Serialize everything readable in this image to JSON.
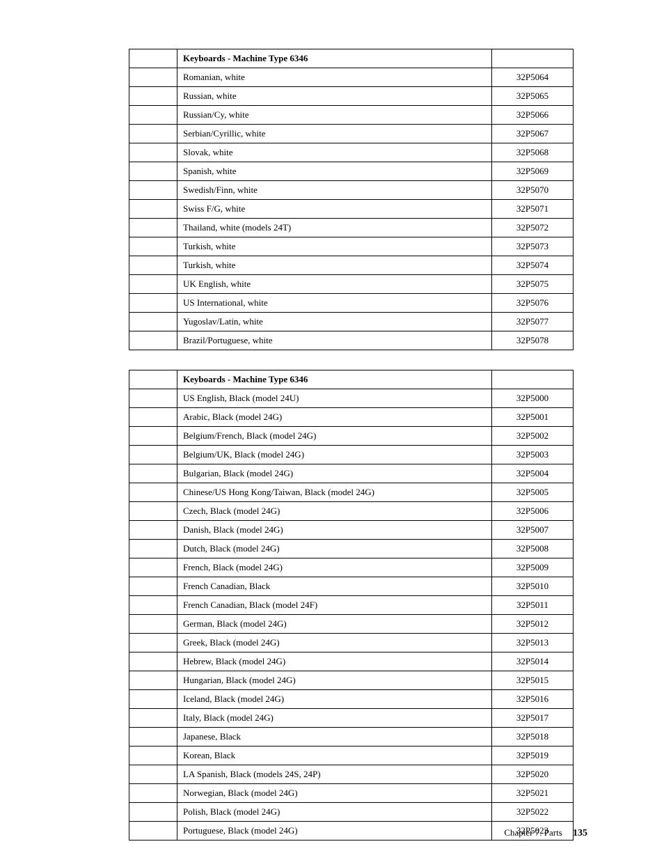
{
  "table1": {
    "header": {
      "title": "Keyboards - Machine Type 6346",
      "code": ""
    },
    "rows": [
      {
        "name": "Romanian, white",
        "code": "32P5064"
      },
      {
        "name": "Russian, white",
        "code": "32P5065"
      },
      {
        "name": "Russian/Cy, white",
        "code": "32P5066"
      },
      {
        "name": "Serbian/Cyrillic, white",
        "code": "32P5067"
      },
      {
        "name": "Slovak, white",
        "code": "32P5068"
      },
      {
        "name": "Spanish, white",
        "code": "32P5069"
      },
      {
        "name": "Swedish/Finn, white",
        "code": "32P5070"
      },
      {
        "name": "Swiss F/G, white",
        "code": "32P5071"
      },
      {
        "name": "Thailand, white (models 24T)",
        "code": "32P5072"
      },
      {
        "name": "Turkish, white",
        "code": "32P5073"
      },
      {
        "name": "Turkish, white",
        "code": "32P5074"
      },
      {
        "name": "UK English, white",
        "code": "32P5075"
      },
      {
        "name": "US International, white",
        "code": "32P5076"
      },
      {
        "name": "Yugoslav/Latin, white",
        "code": "32P5077"
      },
      {
        "name": "Brazil/Portuguese, white",
        "code": "32P5078"
      }
    ]
  },
  "table2": {
    "header": {
      "title": "Keyboards - Machine Type 6346",
      "code": ""
    },
    "rows": [
      {
        "name": "US English, Black (model 24U)",
        "code": "32P5000"
      },
      {
        "name": "Arabic, Black (model 24G)",
        "code": "32P5001"
      },
      {
        "name": "Belgium/French, Black (model 24G)",
        "code": "32P5002"
      },
      {
        "name": "Belgium/UK, Black (model 24G)",
        "code": "32P5003"
      },
      {
        "name": "Bulgarian, Black (model 24G)",
        "code": "32P5004"
      },
      {
        "name": "Chinese/US Hong Kong/Taiwan, Black (model 24G)",
        "code": "32P5005"
      },
      {
        "name": "Czech, Black (model 24G)",
        "code": "32P5006"
      },
      {
        "name": "Danish, Black (model 24G)",
        "code": "32P5007"
      },
      {
        "name": "Dutch, Black (model 24G)",
        "code": "32P5008"
      },
      {
        "name": "French, Black (model 24G)",
        "code": "32P5009"
      },
      {
        "name": "French Canadian, Black",
        "code": "32P5010"
      },
      {
        "name": "French Canadian, Black (model 24F)",
        "code": "32P5011"
      },
      {
        "name": "German, Black (model 24G)",
        "code": "32P5012"
      },
      {
        "name": "Greek, Black (model 24G)",
        "code": "32P5013"
      },
      {
        "name": "Hebrew, Black (model 24G)",
        "code": "32P5014"
      },
      {
        "name": "Hungarian, Black (model 24G)",
        "code": "32P5015"
      },
      {
        "name": "Iceland, Black (model 24G)",
        "code": "32P5016"
      },
      {
        "name": "Italy, Black (model 24G)",
        "code": "32P5017"
      },
      {
        "name": "Japanese, Black",
        "code": "32P5018"
      },
      {
        "name": "Korean, Black",
        "code": "32P5019"
      },
      {
        "name": "LA Spanish, Black (models 24S, 24P)",
        "code": "32P5020"
      },
      {
        "name": "Norwegian, Black (model 24G)",
        "code": "32P5021"
      },
      {
        "name": "Polish, Black (model 24G)",
        "code": "32P5022"
      },
      {
        "name": "Portuguese, Black (model 24G)",
        "code": "32P5023"
      }
    ]
  },
  "footer": {
    "chapter": "Chapter 7. Parts",
    "page": "135"
  }
}
